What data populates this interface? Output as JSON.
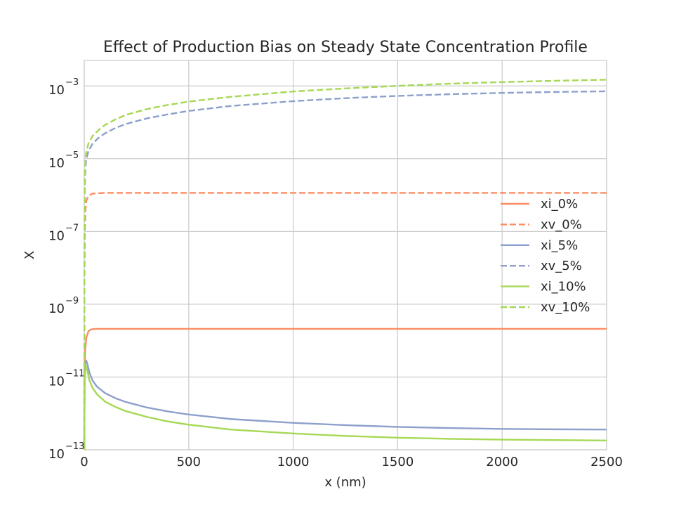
{
  "chart_data": {
    "type": "line",
    "title": "Effect of Production Bias on Steady State Concentration Profile",
    "xlabel": "x (nm)",
    "ylabel": "X",
    "xlim": [
      0,
      2500
    ],
    "ylim": [
      1e-13,
      0.005
    ],
    "yscale": "log",
    "grid": true,
    "legend_position": "center-right",
    "x_ticks": [
      0,
      500,
      1000,
      1500,
      2000,
      2500
    ],
    "x_tick_labels": [
      "0",
      "500",
      "1000",
      "1500",
      "2000",
      "2500"
    ],
    "y_ticks": [
      {
        "value": 1e-13,
        "base": "10",
        "exp": "−13"
      },
      {
        "value": 1e-11,
        "base": "10",
        "exp": "−11"
      },
      {
        "value": 1e-09,
        "base": "10",
        "exp": "−9"
      },
      {
        "value": 1e-07,
        "base": "10",
        "exp": "−7"
      },
      {
        "value": 1e-05,
        "base": "10",
        "exp": "−5"
      },
      {
        "value": 0.001,
        "base": "10",
        "exp": "−3"
      }
    ],
    "series": [
      {
        "name": "xi_0%",
        "color": "#fc8d62",
        "style": "solid",
        "points": [
          [
            0,
            1e-13
          ],
          [
            2,
            2e-11
          ],
          [
            5,
            6e-11
          ],
          [
            10,
            1.2e-10
          ],
          [
            20,
            1.8e-10
          ],
          [
            30,
            2e-10
          ],
          [
            50,
            2.1e-10
          ],
          [
            100,
            2.1e-10
          ],
          [
            500,
            2.1e-10
          ],
          [
            1000,
            2.1e-10
          ],
          [
            1500,
            2.1e-10
          ],
          [
            2000,
            2.1e-10
          ],
          [
            2500,
            2.1e-10
          ]
        ]
      },
      {
        "name": "xv_0%",
        "color": "#fc8d62",
        "style": "dashed",
        "points": [
          [
            0,
            1e-13
          ],
          [
            1,
            5e-09
          ],
          [
            3,
            1e-07
          ],
          [
            6,
            4e-07
          ],
          [
            10,
            7e-07
          ],
          [
            20,
            9.5e-07
          ],
          [
            40,
            1.1e-06
          ],
          [
            100,
            1.15e-06
          ],
          [
            500,
            1.15e-06
          ],
          [
            1000,
            1.15e-06
          ],
          [
            1500,
            1.15e-06
          ],
          [
            2000,
            1.15e-06
          ],
          [
            2500,
            1.15e-06
          ]
        ]
      },
      {
        "name": "xi_5%",
        "color": "#8da0cb",
        "style": "solid",
        "points": [
          [
            0,
            1e-13
          ],
          [
            2,
            1e-11
          ],
          [
            6,
            2.6e-11
          ],
          [
            10,
            2.8e-11
          ],
          [
            15,
            2.3e-11
          ],
          [
            25,
            1.3e-11
          ],
          [
            40,
            8e-12
          ],
          [
            60,
            5.5e-12
          ],
          [
            100,
            3.6e-12
          ],
          [
            150,
            2.6e-12
          ],
          [
            200,
            2.05e-12
          ],
          [
            300,
            1.45e-12
          ],
          [
            400,
            1.13e-12
          ],
          [
            500,
            9.3e-13
          ],
          [
            700,
            7e-13
          ],
          [
            1000,
            5.5e-13
          ],
          [
            1250,
            4.75e-13
          ],
          [
            1500,
            4.25e-13
          ],
          [
            1750,
            3.95e-13
          ],
          [
            2000,
            3.75e-13
          ],
          [
            2250,
            3.65e-13
          ],
          [
            2500,
            3.6e-13
          ]
        ]
      },
      {
        "name": "xv_5%",
        "color": "#8da0cb",
        "style": "dashed",
        "points": [
          [
            0,
            1e-13
          ],
          [
            1,
            1e-08
          ],
          [
            3,
            2e-06
          ],
          [
            6,
            6e-06
          ],
          [
            10,
            1e-05
          ],
          [
            20,
            1.6e-05
          ],
          [
            40,
            2.6e-05
          ],
          [
            70,
            3.8e-05
          ],
          [
            100,
            5e-05
          ],
          [
            150,
            7e-05
          ],
          [
            200,
            9e-05
          ],
          [
            300,
            0.000128
          ],
          [
            400,
            0.000165
          ],
          [
            500,
            0.000205
          ],
          [
            700,
            0.00028
          ],
          [
            1000,
            0.00038
          ],
          [
            1250,
            0.00046
          ],
          [
            1500,
            0.00053
          ],
          [
            1750,
            0.00059
          ],
          [
            2000,
            0.00064
          ],
          [
            2250,
            0.00068
          ],
          [
            2500,
            0.00071
          ]
        ]
      },
      {
        "name": "xi_10%",
        "color": "#a6d854",
        "style": "solid",
        "points": [
          [
            0,
            1e-13
          ],
          [
            2,
            8e-12
          ],
          [
            6,
            1.8e-11
          ],
          [
            10,
            1.9e-11
          ],
          [
            15,
            1.5e-11
          ],
          [
            25,
            8e-12
          ],
          [
            40,
            5e-12
          ],
          [
            60,
            3.4e-12
          ],
          [
            100,
            2.1e-12
          ],
          [
            150,
            1.5e-12
          ],
          [
            200,
            1.15e-12
          ],
          [
            300,
            8e-13
          ],
          [
            400,
            6e-13
          ],
          [
            500,
            4.9e-13
          ],
          [
            700,
            3.6e-13
          ],
          [
            1000,
            2.8e-13
          ],
          [
            1250,
            2.4e-13
          ],
          [
            1500,
            2.15e-13
          ],
          [
            1750,
            2e-13
          ],
          [
            2000,
            1.9e-13
          ],
          [
            2250,
            1.85e-13
          ],
          [
            2500,
            1.8e-13
          ]
        ]
      },
      {
        "name": "xv_10%",
        "color": "#a6d854",
        "style": "dashed",
        "points": [
          [
            0,
            1e-13
          ],
          [
            1,
            2e-08
          ],
          [
            3,
            3e-06
          ],
          [
            6,
            1e-05
          ],
          [
            10,
            1.6e-05
          ],
          [
            20,
            2.6e-05
          ],
          [
            40,
            4.2e-05
          ],
          [
            70,
            6.2e-05
          ],
          [
            100,
            8.5e-05
          ],
          [
            150,
            0.00012
          ],
          [
            200,
            0.00016
          ],
          [
            300,
            0.00023
          ],
          [
            400,
            0.0003
          ],
          [
            500,
            0.00037
          ],
          [
            700,
            0.0005
          ],
          [
            1000,
            0.0007
          ],
          [
            1250,
            0.00085
          ],
          [
            1500,
            0.001
          ],
          [
            1750,
            0.00115
          ],
          [
            2000,
            0.00127
          ],
          [
            2250,
            0.00138
          ],
          [
            2500,
            0.00148
          ]
        ]
      }
    ]
  }
}
